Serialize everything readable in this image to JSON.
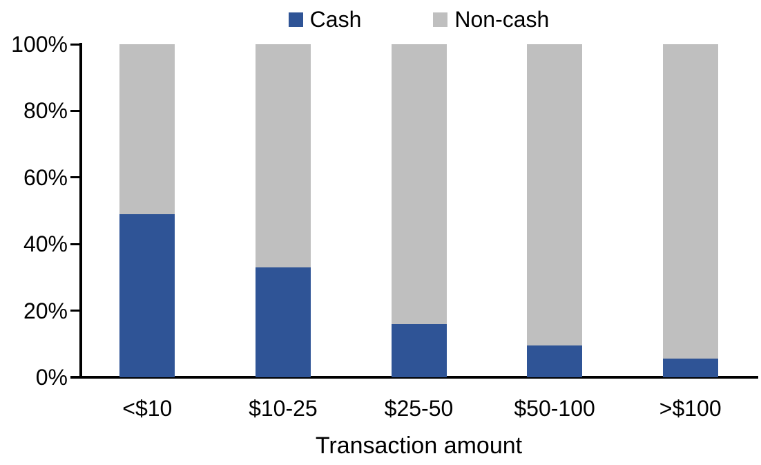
{
  "chart_data": {
    "type": "bar",
    "stacked": true,
    "percent_stacked": true,
    "title": "",
    "xlabel": "Transaction amount",
    "ylabel": "",
    "categories": [
      "<$10",
      "$10-25",
      "$25-50",
      "$50-100",
      ">$100"
    ],
    "series": [
      {
        "name": "Cash",
        "color": "#2F5496",
        "values": [
          49,
          33,
          16,
          9.5,
          5.5
        ]
      },
      {
        "name": "Non-cash",
        "color": "#BFBFBF",
        "values": [
          51,
          67,
          84,
          90.5,
          94.5
        ]
      }
    ],
    "ylim": [
      0,
      100
    ],
    "yticks": [
      0,
      20,
      40,
      60,
      80,
      100
    ],
    "ytick_labels": [
      "0%",
      "20%",
      "40%",
      "60%",
      "80%",
      "100%"
    ],
    "legend_position": "top",
    "grid": false,
    "axis_color": "#000000",
    "background_color": "#FFFFFF"
  }
}
